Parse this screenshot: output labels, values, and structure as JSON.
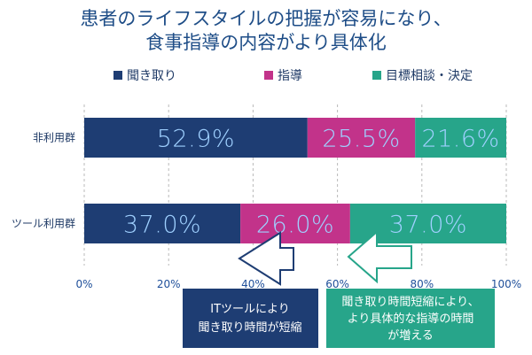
{
  "chart_data": {
    "type": "bar",
    "orientation": "horizontal",
    "stacked": true,
    "title_lines": [
      "患者のライフスタイルの把握が容易になり、",
      "食事指導の内容がより具体化"
    ],
    "categories": [
      "非利用群",
      "ツール利用群"
    ],
    "series": [
      {
        "name": "聞き取り",
        "values": [
          52.9,
          37.0
        ],
        "labels": [
          "52.9%",
          "37.0%"
        ],
        "color": "#1e3d73"
      },
      {
        "name": "指導",
        "values": [
          25.5,
          26.0
        ],
        "labels": [
          "25.5%",
          "26.0%"
        ],
        "color": "#c2338a"
      },
      {
        "name": "目標相談・決定",
        "values": [
          21.6,
          37.0
        ],
        "labels": [
          "21.6%",
          "37.0%"
        ],
        "color": "#27a58a"
      }
    ],
    "xlim": [
      0,
      100
    ],
    "x_ticks": [
      "0%",
      "20%",
      "40%",
      "60%",
      "80%",
      "100%"
    ],
    "grid": "vertical-dashed",
    "legend_position": "top",
    "annotations": [
      {
        "lines": [
          "ITツールにより",
          "聞き取り時間が短縮"
        ],
        "color": "#1e3d73",
        "arrow": "hollow-white",
        "points_to": "聞き取り"
      },
      {
        "lines": [
          "聞き取り時間短縮により、",
          "より具体的な指導の時間",
          "が増える"
        ],
        "color": "#27a58a",
        "arrow": "hollow-green",
        "points_to": "指導"
      }
    ]
  }
}
